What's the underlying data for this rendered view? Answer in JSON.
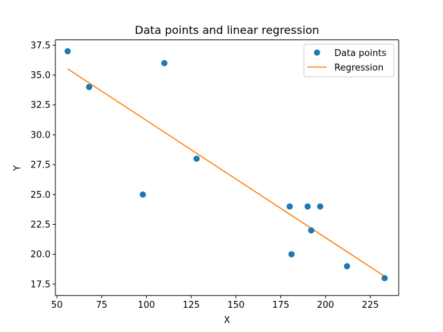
{
  "chart_data": {
    "type": "scatter",
    "title": "Data points and linear regression",
    "xlabel": "X",
    "ylabel": "Y",
    "xlim": [
      49.15,
      240.85
    ],
    "ylim": [
      16.55,
      37.95
    ],
    "xticks": [
      50,
      75,
      100,
      125,
      150,
      175,
      200,
      225
    ],
    "yticks": [
      17.5,
      20.0,
      22.5,
      25.0,
      27.5,
      30.0,
      32.5,
      35.0,
      37.5
    ],
    "xtick_labels": [
      "50",
      "75",
      "100",
      "125",
      "150",
      "175",
      "200",
      "225"
    ],
    "ytick_labels": [
      "17.5",
      "20.0",
      "22.5",
      "25.0",
      "27.5",
      "30.0",
      "32.5",
      "35.0",
      "37.5"
    ],
    "grid": false,
    "legend_position": "top-right",
    "series": [
      {
        "name": "Data points",
        "kind": "scatter",
        "color": "#1f77b4",
        "x": [
          56,
          68,
          98,
          110,
          128,
          180,
          181,
          190,
          192,
          197,
          212,
          233
        ],
        "y": [
          37,
          34,
          25,
          36,
          28,
          24,
          20,
          24,
          22,
          24,
          19,
          18
        ]
      },
      {
        "name": "Regression",
        "kind": "line",
        "color": "#ff7f0e",
        "x": [
          56,
          233
        ],
        "y": [
          35.52,
          18.15
        ]
      }
    ]
  }
}
